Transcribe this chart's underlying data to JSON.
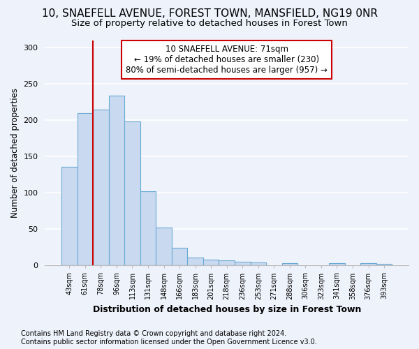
{
  "title_line1": "10, SNAEFELL AVENUE, FOREST TOWN, MANSFIELD, NG19 0NR",
  "title_line2": "Size of property relative to detached houses in Forest Town",
  "xlabel": "Distribution of detached houses by size in Forest Town",
  "ylabel": "Number of detached properties",
  "categories": [
    "43sqm",
    "61sqm",
    "78sqm",
    "96sqm",
    "113sqm",
    "131sqm",
    "148sqm",
    "166sqm",
    "183sqm",
    "201sqm",
    "218sqm",
    "236sqm",
    "253sqm",
    "271sqm",
    "288sqm",
    "306sqm",
    "323sqm",
    "341sqm",
    "358sqm",
    "376sqm",
    "393sqm"
  ],
  "values": [
    136,
    210,
    214,
    234,
    198,
    102,
    52,
    24,
    11,
    8,
    7,
    5,
    4,
    0,
    3,
    0,
    0,
    3,
    0,
    3,
    2
  ],
  "bar_color": "#c8d9f0",
  "bar_edge_color": "#6aaad4",
  "vline_color": "#cc0000",
  "vline_x": 2.0,
  "annotation_text": "10 SNAEFELL AVENUE: 71sqm\n← 19% of detached houses are smaller (230)\n80% of semi-detached houses are larger (957) →",
  "footnote": "Contains HM Land Registry data © Crown copyright and database right 2024.\nContains public sector information licensed under the Open Government Licence v3.0.",
  "ylim": [
    0,
    310
  ],
  "yticks": [
    0,
    50,
    100,
    150,
    200,
    250,
    300
  ],
  "background_color": "#eef2fb",
  "grid_color": "#ffffff",
  "title_fontsize": 11,
  "subtitle_fontsize": 9.5,
  "xlabel_fontsize": 9,
  "ylabel_fontsize": 8.5,
  "annotation_fontsize": 8.5,
  "footnote_fontsize": 7
}
